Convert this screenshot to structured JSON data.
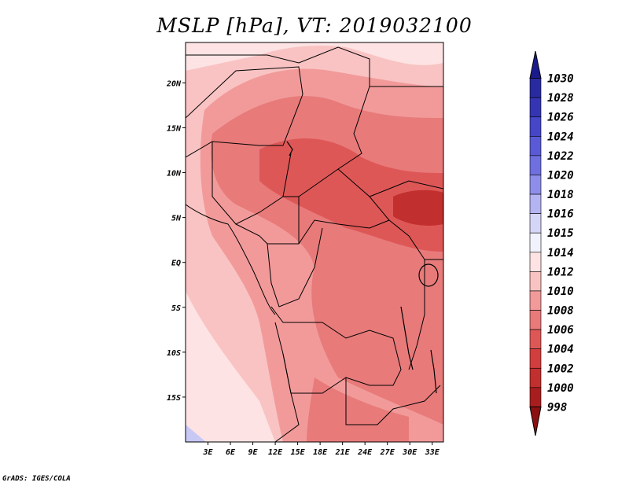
{
  "title": "MSLP [hPa], VT: 2019032100",
  "credit": "GrADS: IGES/COLA",
  "colors": {
    "background": "#fbcfcf",
    "low_dark": "#c23030",
    "mid_red": "#e25151",
    "light_red": "#f7a9a9",
    "very_light": "#fde6e6",
    "high_blue": "#c8c8f5"
  },
  "map": {
    "lon_range": [
      0,
      34.5
    ],
    "lat_range": [
      -20,
      24.5
    ],
    "x_ticks": [
      "3E",
      "6E",
      "9E",
      "12E",
      "15E",
      "18E",
      "21E",
      "24E",
      "27E",
      "30E",
      "33E"
    ],
    "y_ticks": [
      "20N",
      "15N",
      "10N",
      "5N",
      "EQ",
      "5S",
      "10S",
      "15S"
    ]
  },
  "colorbar": {
    "levels": [
      "1030",
      "1028",
      "1026",
      "1024",
      "1022",
      "1020",
      "1018",
      "1016",
      "1015",
      "1014",
      "1012",
      "1010",
      "1008",
      "1006",
      "1004",
      "1002",
      "1000",
      "998"
    ],
    "colors": [
      "#1a1a8c",
      "#2a2aa0",
      "#3535b4",
      "#4646c8",
      "#5a5ad6",
      "#6f6fe0",
      "#8e8eea",
      "#b4b4f3",
      "#d5d5f8",
      "#f2f2fd",
      "#fde3e3",
      "#f9c3c3",
      "#f29a9a",
      "#e87a7a",
      "#de5757",
      "#d23e3e",
      "#c22f2f",
      "#a81e1e",
      "#8c1010"
    ]
  }
}
